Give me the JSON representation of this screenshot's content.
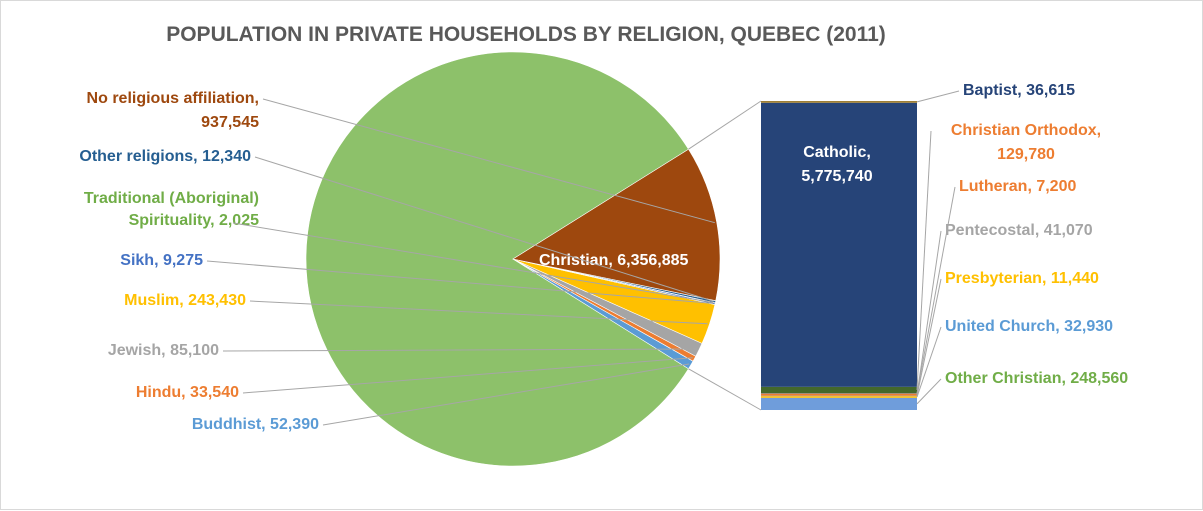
{
  "chart_data": {
    "type": "bar-of-pie",
    "title": "POPULATION IN PRIVATE HOUSEHOLDS BY RELIGION, QUEBEC (2011)",
    "pie": {
      "slices": [
        {
          "name": "Christian",
          "value": 6356885,
          "color": "#8DC16A",
          "label": "Christian, 6,356,885",
          "label_color": "#ffffff"
        },
        {
          "name": "Buddhist",
          "value": 52390,
          "color": "#5B9BD5",
          "label": "Buddhist, 52,390",
          "label_color": "#5B9BD5"
        },
        {
          "name": "Hindu",
          "value": 33540,
          "color": "#ED7D31",
          "label": "Hindu, 33,540",
          "label_color": "#ED7D31"
        },
        {
          "name": "Jewish",
          "value": 85100,
          "color": "#A5A5A5",
          "label": "Jewish, 85,100",
          "label_color": "#A5A5A5"
        },
        {
          "name": "Muslim",
          "value": 243430,
          "color": "#FFC000",
          "label": "Muslim, 243,430",
          "label_color": "#FFC000"
        },
        {
          "name": "Sikh",
          "value": 9275,
          "color": "#4472C4",
          "label": "Sikh, 9,275",
          "label_color": "#4472C4"
        },
        {
          "name": "Traditional (Aboriginal) Spirituality",
          "value": 2025,
          "color": "#70AD47",
          "label_lines": [
            "Traditional (Aboriginal)",
            "Spirituality, 2,025"
          ],
          "label_color": "#70AD47"
        },
        {
          "name": "Other religions",
          "value": 12340,
          "color": "#255E91",
          "label": "Other religions, 12,340",
          "label_color": "#255E91"
        },
        {
          "name": "No religious affiliation",
          "value": 937545,
          "color": "#9E480E",
          "label_lines": [
            "No religious affiliation,",
            "937,545"
          ],
          "label_color": "#9E480E"
        }
      ]
    },
    "bar": {
      "segments_bottom_to_top": [
        {
          "name": "Other Christian",
          "value": 248560,
          "color": "#6F9DDB",
          "label": "Other Christian, 248,560",
          "label_color": "#70AD47"
        },
        {
          "name": "United Church",
          "value": 32930,
          "color": "#FFC000",
          "label": "United Church, 32,930",
          "label_color": "#5B9BD5"
        },
        {
          "name": "Presbyterian",
          "value": 11440,
          "color": "#A5A5A5",
          "label": "Presbyterian, 11,440",
          "label_color": "#FFC000"
        },
        {
          "name": "Pentecostal",
          "value": 41070,
          "color": "#ED7D31",
          "label": "Pentecostal, 41,070",
          "label_color": "#A5A5A5"
        },
        {
          "name": "Lutheran",
          "value": 7200,
          "color": "#4472C4",
          "label": "Lutheran, 7,200",
          "label_color": "#ED7D31"
        },
        {
          "name": "Christian Orthodox",
          "value": 129780,
          "color": "#43682B",
          "label_lines": [
            "Christian Orthodox,",
            "129,780"
          ],
          "label_color": "#ED7D31"
        },
        {
          "name": "Catholic",
          "value": 5775740,
          "color": "#264478",
          "label_lines": [
            "Catholic,",
            "5,775,740"
          ],
          "label_color": "#ffffff"
        },
        {
          "name": "Baptist",
          "value": 36615,
          "color": "#9E8036",
          "label": "Baptist, 36,615",
          "label_color": "#264478"
        }
      ]
    },
    "legend": "none"
  }
}
